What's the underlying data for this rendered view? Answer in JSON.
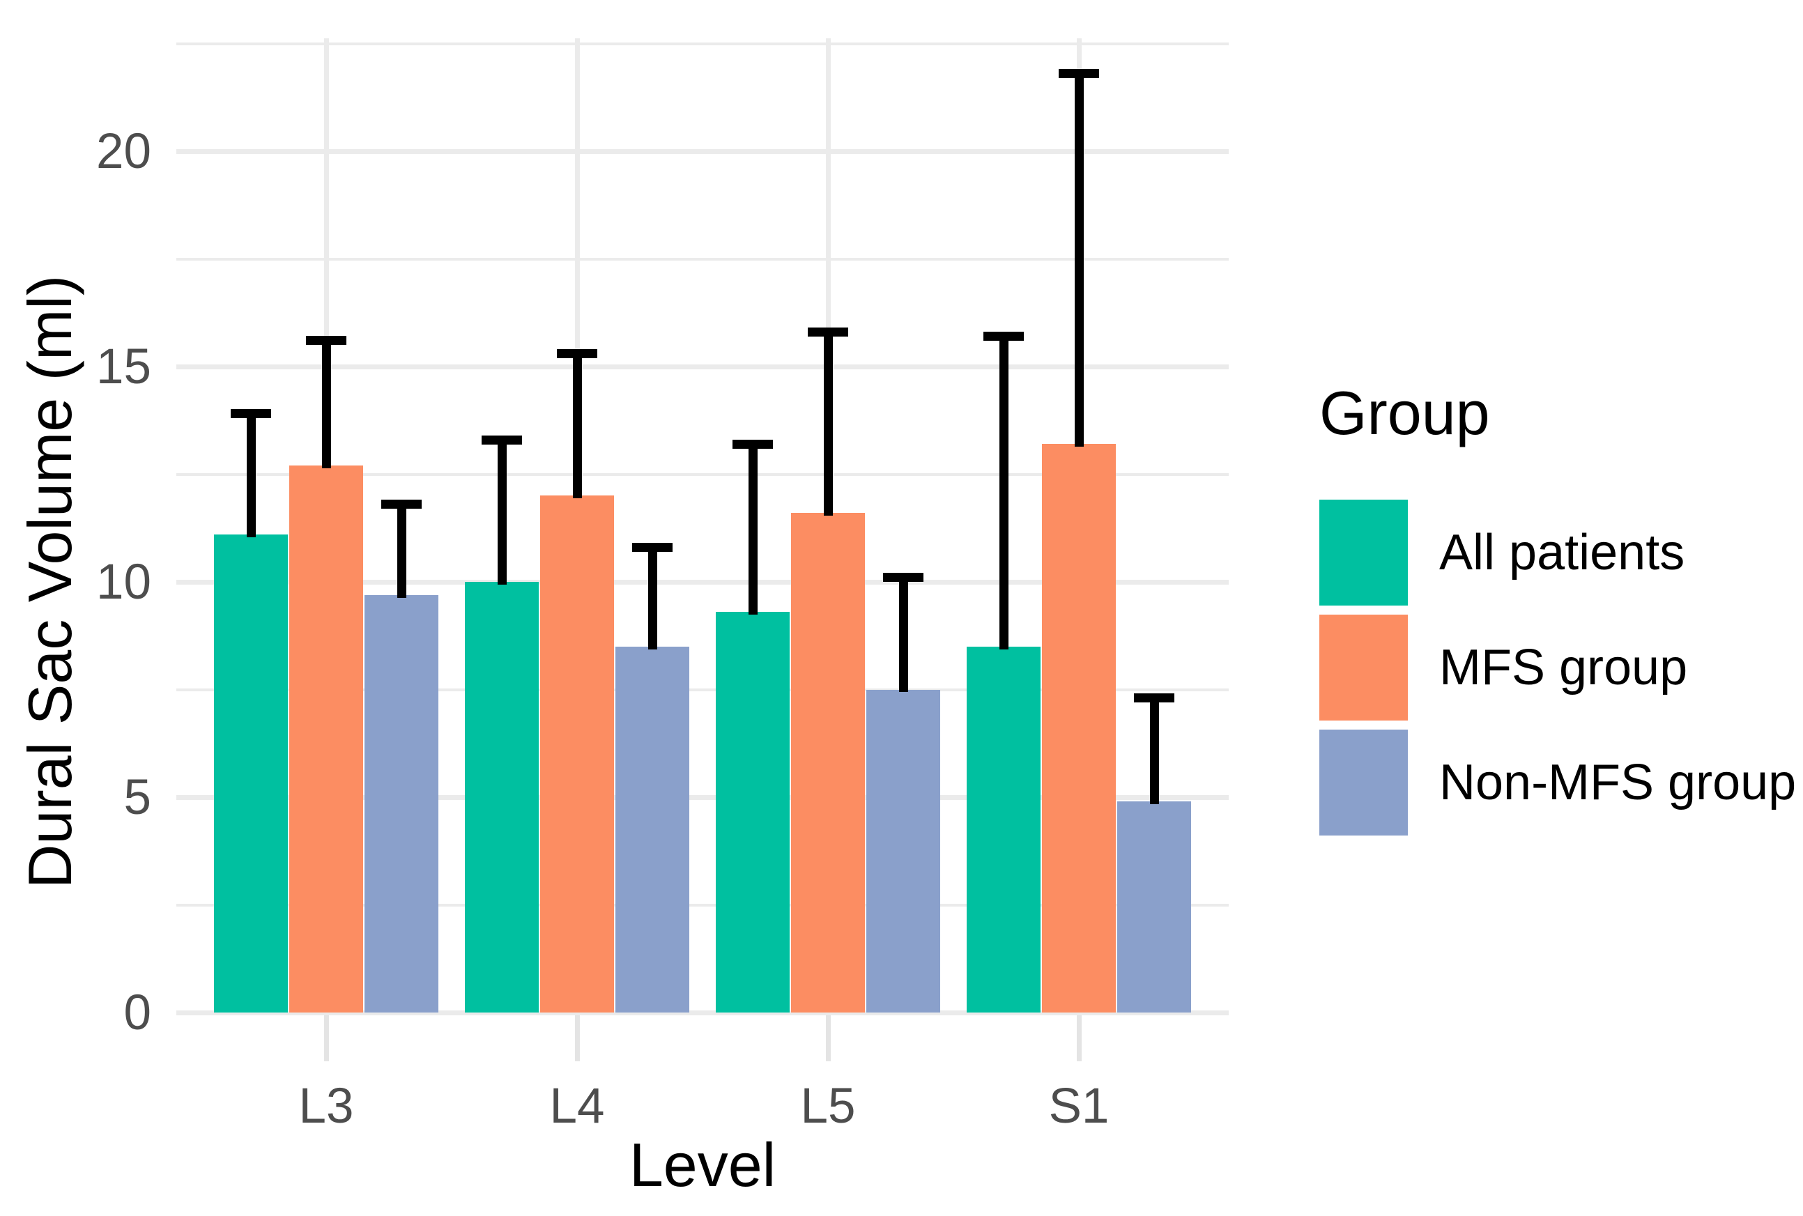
{
  "figure": {
    "y_axis_title": "Dural Sac Volume (ml)",
    "x_axis_title": "Level",
    "legend_title": "Group"
  },
  "chart_data": {
    "type": "bar",
    "title": "",
    "xlabel": "Level",
    "ylabel": "Dural Sac Volume (ml)",
    "categories": [
      "L3",
      "L4",
      "L5",
      "S1"
    ],
    "series": [
      {
        "name": "All patients",
        "color": "#00C0A0",
        "values": [
          11.1,
          10.0,
          9.3,
          8.5
        ],
        "error_upper": [
          13.9,
          13.3,
          13.2,
          15.7
        ]
      },
      {
        "name": "MFS group",
        "color": "#FC8D62",
        "values": [
          12.7,
          12.0,
          11.6,
          13.2
        ],
        "error_upper": [
          15.6,
          15.3,
          15.8,
          21.8
        ]
      },
      {
        "name": "Non-MFS group",
        "color": "#8AA0CB",
        "values": [
          9.7,
          8.5,
          7.5,
          4.9
        ],
        "error_upper": [
          11.8,
          10.8,
          10.1,
          7.3
        ]
      }
    ],
    "y_ticks": [
      0,
      5,
      10,
      15,
      20
    ],
    "y_minor_ticks": [
      2.5,
      7.5,
      12.5,
      17.5,
      22.5
    ],
    "ylim": [
      0,
      22.6
    ],
    "grid": "horizontal major+minor and vertical major, light gray on white",
    "legend_position": "right",
    "error_bars": "upper only, black, with end caps",
    "bar_orientation": "vertical, grouped (dodged)"
  },
  "colors": {
    "background": "#FFFFFF",
    "gridline": "#EBEBEB",
    "axis_tick_mark": "#E4E4E4",
    "tick_label_text": "#4D4D4D",
    "axis_title_text": "#000000",
    "error_bar": "#000000"
  }
}
